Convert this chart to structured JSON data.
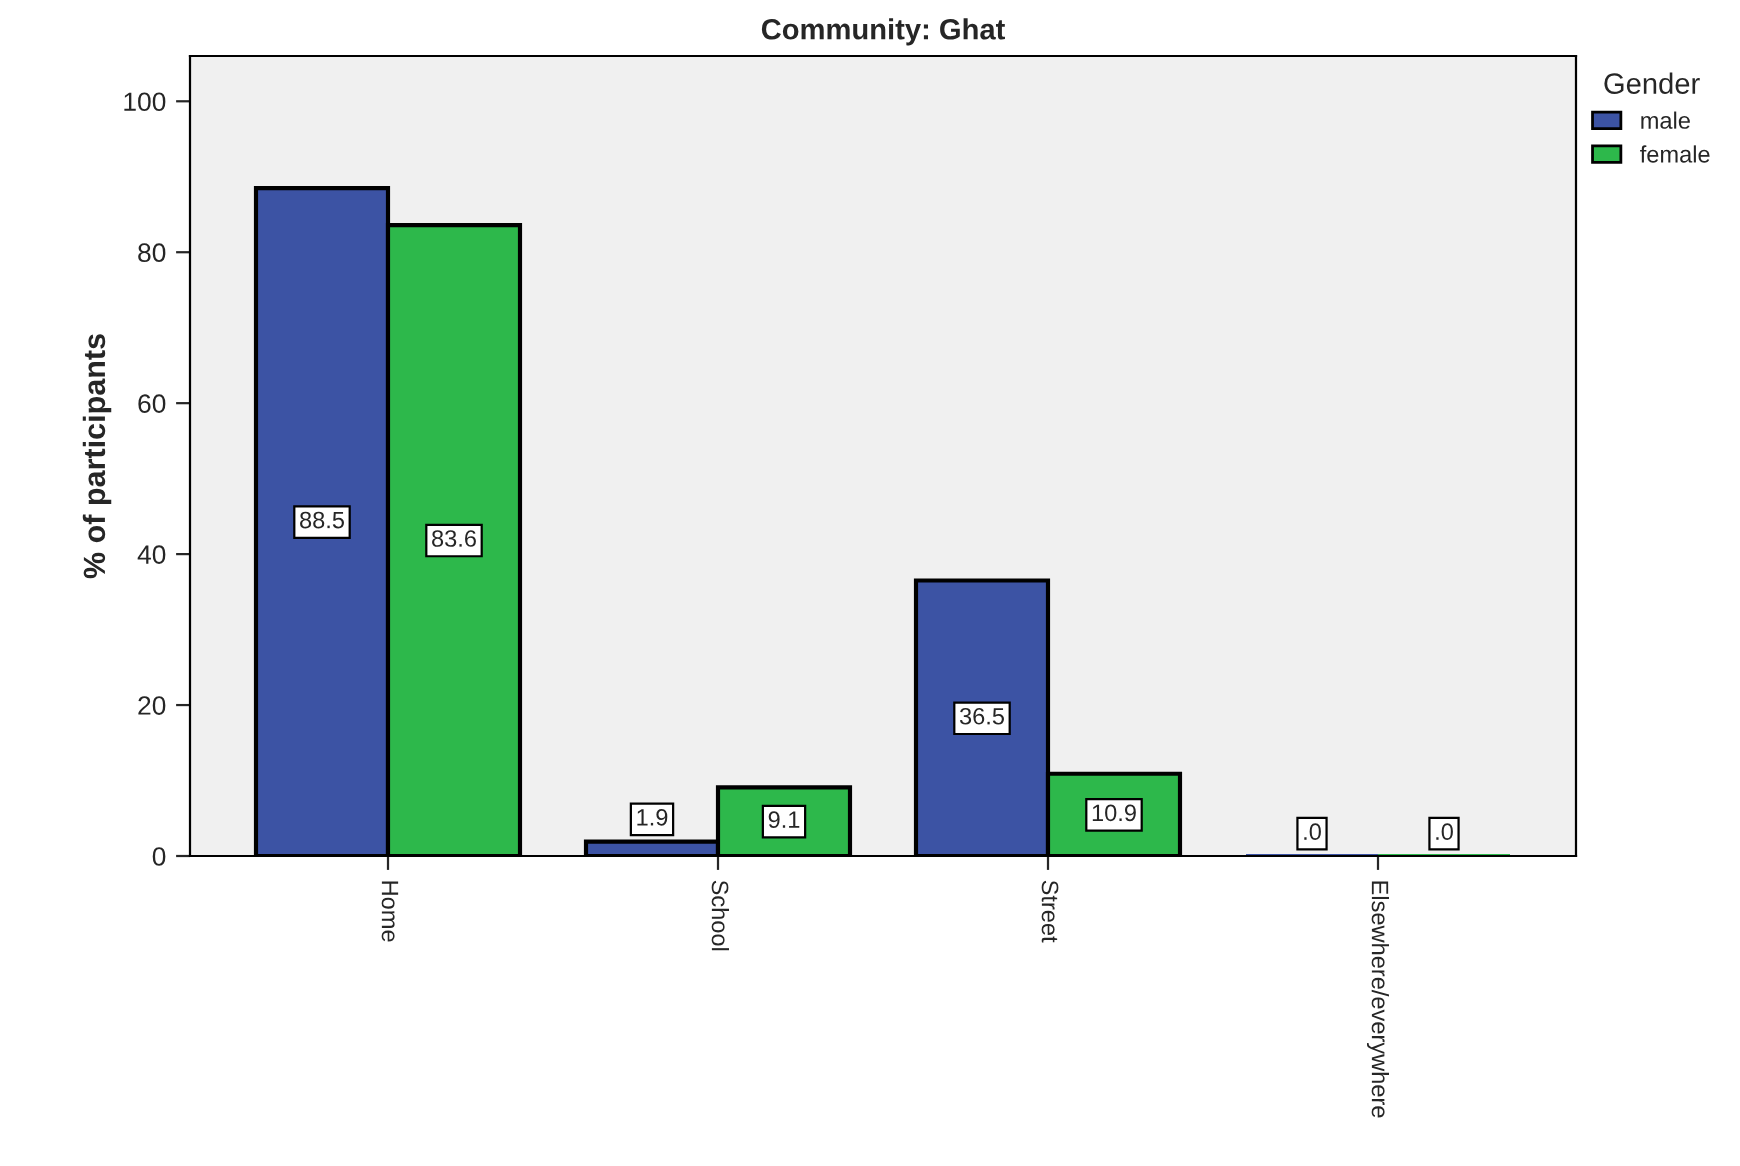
{
  "chart_data": {
    "type": "bar",
    "title": "Community: Ghat",
    "ylabel": "% of participants",
    "legend_title": "Gender",
    "categories": [
      "Home",
      "School",
      "Street",
      "Elsewhere/everywhere"
    ],
    "series": [
      {
        "name": "male",
        "color": "#3c53a4",
        "values": [
          88.5,
          1.9,
          36.5,
          0
        ],
        "value_labels": [
          "88.5",
          "1.9",
          "36.5",
          ".0"
        ]
      },
      {
        "name": "female",
        "color": "#2db84b",
        "values": [
          83.6,
          9.1,
          10.9,
          0
        ],
        "value_labels": [
          "83.6",
          "9.1",
          "10.9",
          ".0"
        ]
      }
    ],
    "ylim": [
      0,
      106
    ],
    "yticks": [
      0,
      20,
      40,
      60,
      80,
      100
    ],
    "grid": false,
    "legend": "top right"
  }
}
